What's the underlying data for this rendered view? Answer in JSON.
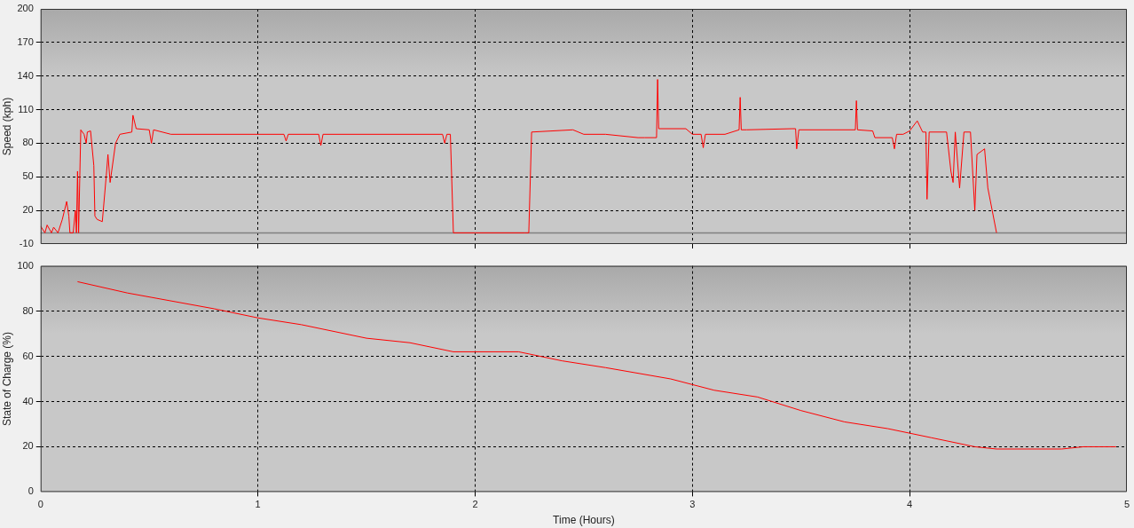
{
  "chart_data": [
    {
      "type": "line",
      "ylabel": "Speed (kph)",
      "xlim": [
        0,
        5
      ],
      "xticks": [
        0,
        1,
        2,
        3,
        4,
        5
      ],
      "ylim": [
        -10,
        200
      ],
      "yticks": [
        -10,
        20,
        50,
        80,
        110,
        140,
        170,
        200
      ],
      "grid": true,
      "tick_labels": "y",
      "line_style": "solid",
      "marker": "none",
      "ref_lines": [
        {
          "axis": "y",
          "value": 0,
          "color": "#808080"
        }
      ],
      "series": [
        {
          "color": "#ff0000",
          "x": [
            0,
            0.02,
            0.03,
            0.05,
            0.06,
            0.08,
            0.1,
            0.12,
            0.13,
            0.135,
            0.15,
            0.16,
            0.165,
            0.17,
            0.175,
            0.185,
            0.2,
            0.21,
            0.215,
            0.23,
            0.245,
            0.25,
            0.26,
            0.284,
            0.304,
            0.31,
            0.32,
            0.345,
            0.365,
            0.42,
            0.425,
            0.44,
            0.5,
            0.51,
            0.52,
            0.6,
            1.12,
            1.13,
            1.14,
            1.28,
            1.29,
            1.3,
            1.85,
            1.86,
            1.87,
            1.886,
            1.9,
            2.0,
            2.23,
            2.247,
            2.26,
            2.45,
            2.5,
            2.6,
            2.75,
            2.78,
            2.835,
            2.84,
            2.845,
            2.97,
            3.0,
            3.04,
            3.05,
            3.06,
            3.15,
            3.215,
            3.22,
            3.225,
            3.25,
            3.46,
            3.475,
            3.48,
            3.49,
            3.75,
            3.755,
            3.76,
            3.83,
            3.84,
            3.92,
            3.93,
            3.94,
            3.97,
            4.0,
            4.035,
            4.06,
            4.075,
            4.08,
            4.09,
            4.17,
            4.19,
            4.2,
            4.21,
            4.23,
            4.25,
            4.28,
            4.3,
            4.31,
            4.345,
            4.36,
            4.38,
            4.4
          ],
          "values": [
            6,
            0,
            7,
            0,
            5,
            0,
            12,
            28,
            15,
            0,
            0,
            20,
            0,
            55,
            0,
            92,
            88,
            80,
            90,
            91,
            60,
            15,
            12,
            10,
            55,
            70,
            45,
            80,
            88,
            90,
            105,
            93,
            92,
            80,
            92,
            88,
            88,
            82,
            88,
            88,
            78,
            88,
            88,
            80,
            88,
            88,
            0,
            0,
            0,
            0,
            90,
            92,
            88,
            88,
            85,
            85,
            85,
            137,
            93,
            93,
            88,
            88,
            76,
            88,
            88,
            92,
            121,
            92,
            92,
            93,
            93,
            75,
            92,
            92,
            118,
            92,
            91,
            85,
            85,
            75,
            88,
            88,
            91,
            100,
            90,
            90,
            30,
            90,
            90,
            55,
            45,
            90,
            40,
            90,
            90,
            20,
            70,
            75,
            40,
            20,
            0
          ]
        }
      ]
    },
    {
      "type": "line",
      "ylabel": "State of Charge (%)",
      "xlabel": "Time (Hours)",
      "xlim": [
        0,
        5
      ],
      "xticks": [
        0,
        1,
        2,
        3,
        4,
        5
      ],
      "ylim": [
        0,
        100
      ],
      "yticks": [
        0,
        20,
        40,
        60,
        80,
        100
      ],
      "grid": true,
      "line_style": "solid",
      "marker": "none",
      "series": [
        {
          "color": "#ff0000",
          "x": [
            0.17,
            0.4,
            0.8,
            1.0,
            1.2,
            1.5,
            1.7,
            1.9,
            2.2,
            2.4,
            2.6,
            2.9,
            3.1,
            3.3,
            3.5,
            3.7,
            3.9,
            4.1,
            4.3,
            4.4,
            4.7,
            4.8,
            4.95
          ],
          "values": [
            93,
            88,
            81,
            77,
            74,
            68,
            66,
            62,
            62,
            58,
            55,
            50,
            45,
            42,
            36,
            31,
            28,
            24,
            20,
            19,
            19,
            20,
            20
          ]
        }
      ]
    }
  ]
}
